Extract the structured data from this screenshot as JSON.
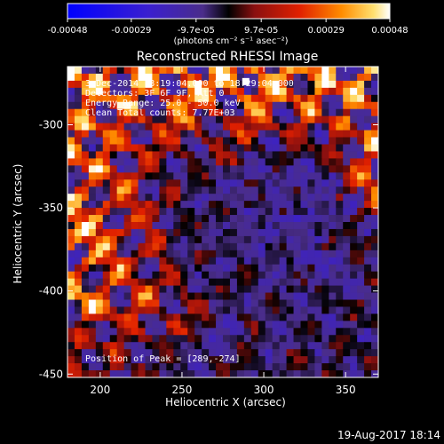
{
  "chart_data": {
    "type": "heatmap",
    "title": "Reconstructed RHESSI Image",
    "xlabel": "Heliocentric X (arcsec)",
    "ylabel": "Heliocentric Y (arcsec)",
    "xlim": [
      180,
      370
    ],
    "ylim": [
      -452,
      -265
    ],
    "x_ticks": [
      200,
      250,
      300,
      350
    ],
    "y_ticks": [
      -300,
      -350,
      -400,
      -450
    ],
    "colorbar": {
      "range": [
        -0.00048,
        0.00048
      ],
      "tick_values": [
        -0.00048,
        -0.00029,
        -9.7e-05,
        9.7e-05,
        0.00029,
        0.00048
      ],
      "tick_labels": [
        "-0.00048",
        "-0.00029",
        "-9.7e-05",
        "9.7e-05",
        "0.00029",
        "0.00048"
      ],
      "label": "(photons cm⁻² s⁻¹ asec⁻²)"
    },
    "annotations": {
      "time": "3-Dec-2014 18:19:04.000 to 18:29:04.000",
      "detectors": "Detectors: 3F 6F 9F, Att 0",
      "energy": "Energy Range: 25.0 - 50.0 keV",
      "method": "Clean     Total counts: 7.77E+03",
      "peak": "Position of Peak = [289,-274]"
    },
    "peak_position": [
      289,
      -274
    ],
    "grid": false
  },
  "footer": {
    "date": "19-Aug-2017 18:14"
  }
}
